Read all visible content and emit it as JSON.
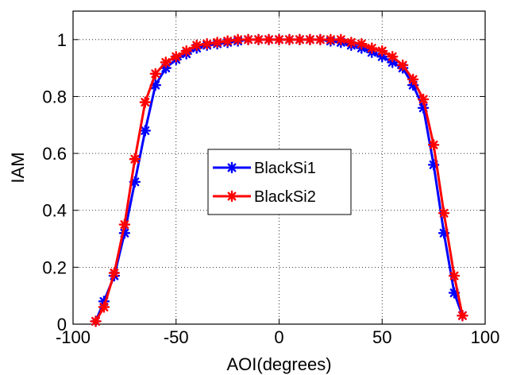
{
  "chart_data": {
    "type": "line",
    "xlabel": "AOI(degrees)",
    "ylabel": "IAM",
    "xlim": [
      -100,
      100
    ],
    "ylim": [
      0,
      1.1
    ],
    "xticks": [
      -100,
      -50,
      0,
      50,
      100
    ],
    "yticks": [
      0,
      0.2,
      0.4,
      0.6,
      0.8,
      1
    ],
    "xtick_labels": [
      "-100",
      "-50",
      "0",
      "50",
      "100"
    ],
    "ytick_labels": [
      "0",
      "0.2",
      "0.4",
      "0.6",
      "0.8",
      "1"
    ],
    "grid": true,
    "legend_position": "center-left",
    "marker": "asterisk",
    "series": [
      {
        "name": "BlackSi1",
        "color": "#0000ff",
        "x": [
          -89,
          -85,
          -80,
          -75,
          -70,
          -65,
          -60,
          -55,
          -50,
          -45,
          -40,
          -35,
          -30,
          -25,
          -20,
          -15,
          -10,
          -5,
          0,
          5,
          10,
          15,
          20,
          25,
          30,
          35,
          40,
          45,
          50,
          55,
          60,
          65,
          70,
          75,
          80,
          85,
          89
        ],
        "values": [
          0.01,
          0.08,
          0.17,
          0.32,
          0.5,
          0.68,
          0.84,
          0.9,
          0.93,
          0.95,
          0.97,
          0.98,
          0.985,
          0.99,
          0.995,
          1.0,
          1.0,
          1.0,
          1.0,
          1.0,
          1.0,
          1.0,
          1.0,
          0.995,
          0.99,
          0.98,
          0.97,
          0.955,
          0.94,
          0.92,
          0.9,
          0.84,
          0.76,
          0.56,
          0.32,
          0.11,
          0.03
        ]
      },
      {
        "name": "BlackSi2",
        "color": "#ff0000",
        "x": [
          -89,
          -85,
          -80,
          -75,
          -70,
          -65,
          -60,
          -55,
          -50,
          -45,
          -40,
          -35,
          -30,
          -25,
          -20,
          -15,
          -10,
          -5,
          0,
          5,
          10,
          15,
          20,
          25,
          30,
          35,
          40,
          45,
          50,
          55,
          60,
          65,
          70,
          75,
          80,
          85,
          89
        ],
        "values": [
          0.01,
          0.06,
          0.18,
          0.35,
          0.58,
          0.78,
          0.88,
          0.92,
          0.94,
          0.96,
          0.98,
          0.985,
          0.99,
          0.995,
          1.0,
          1.0,
          1.0,
          1.0,
          1.0,
          1.0,
          1.0,
          1.0,
          1.0,
          1.0,
          1.0,
          0.99,
          0.985,
          0.97,
          0.96,
          0.94,
          0.91,
          0.86,
          0.79,
          0.63,
          0.39,
          0.17,
          0.03
        ]
      }
    ]
  }
}
